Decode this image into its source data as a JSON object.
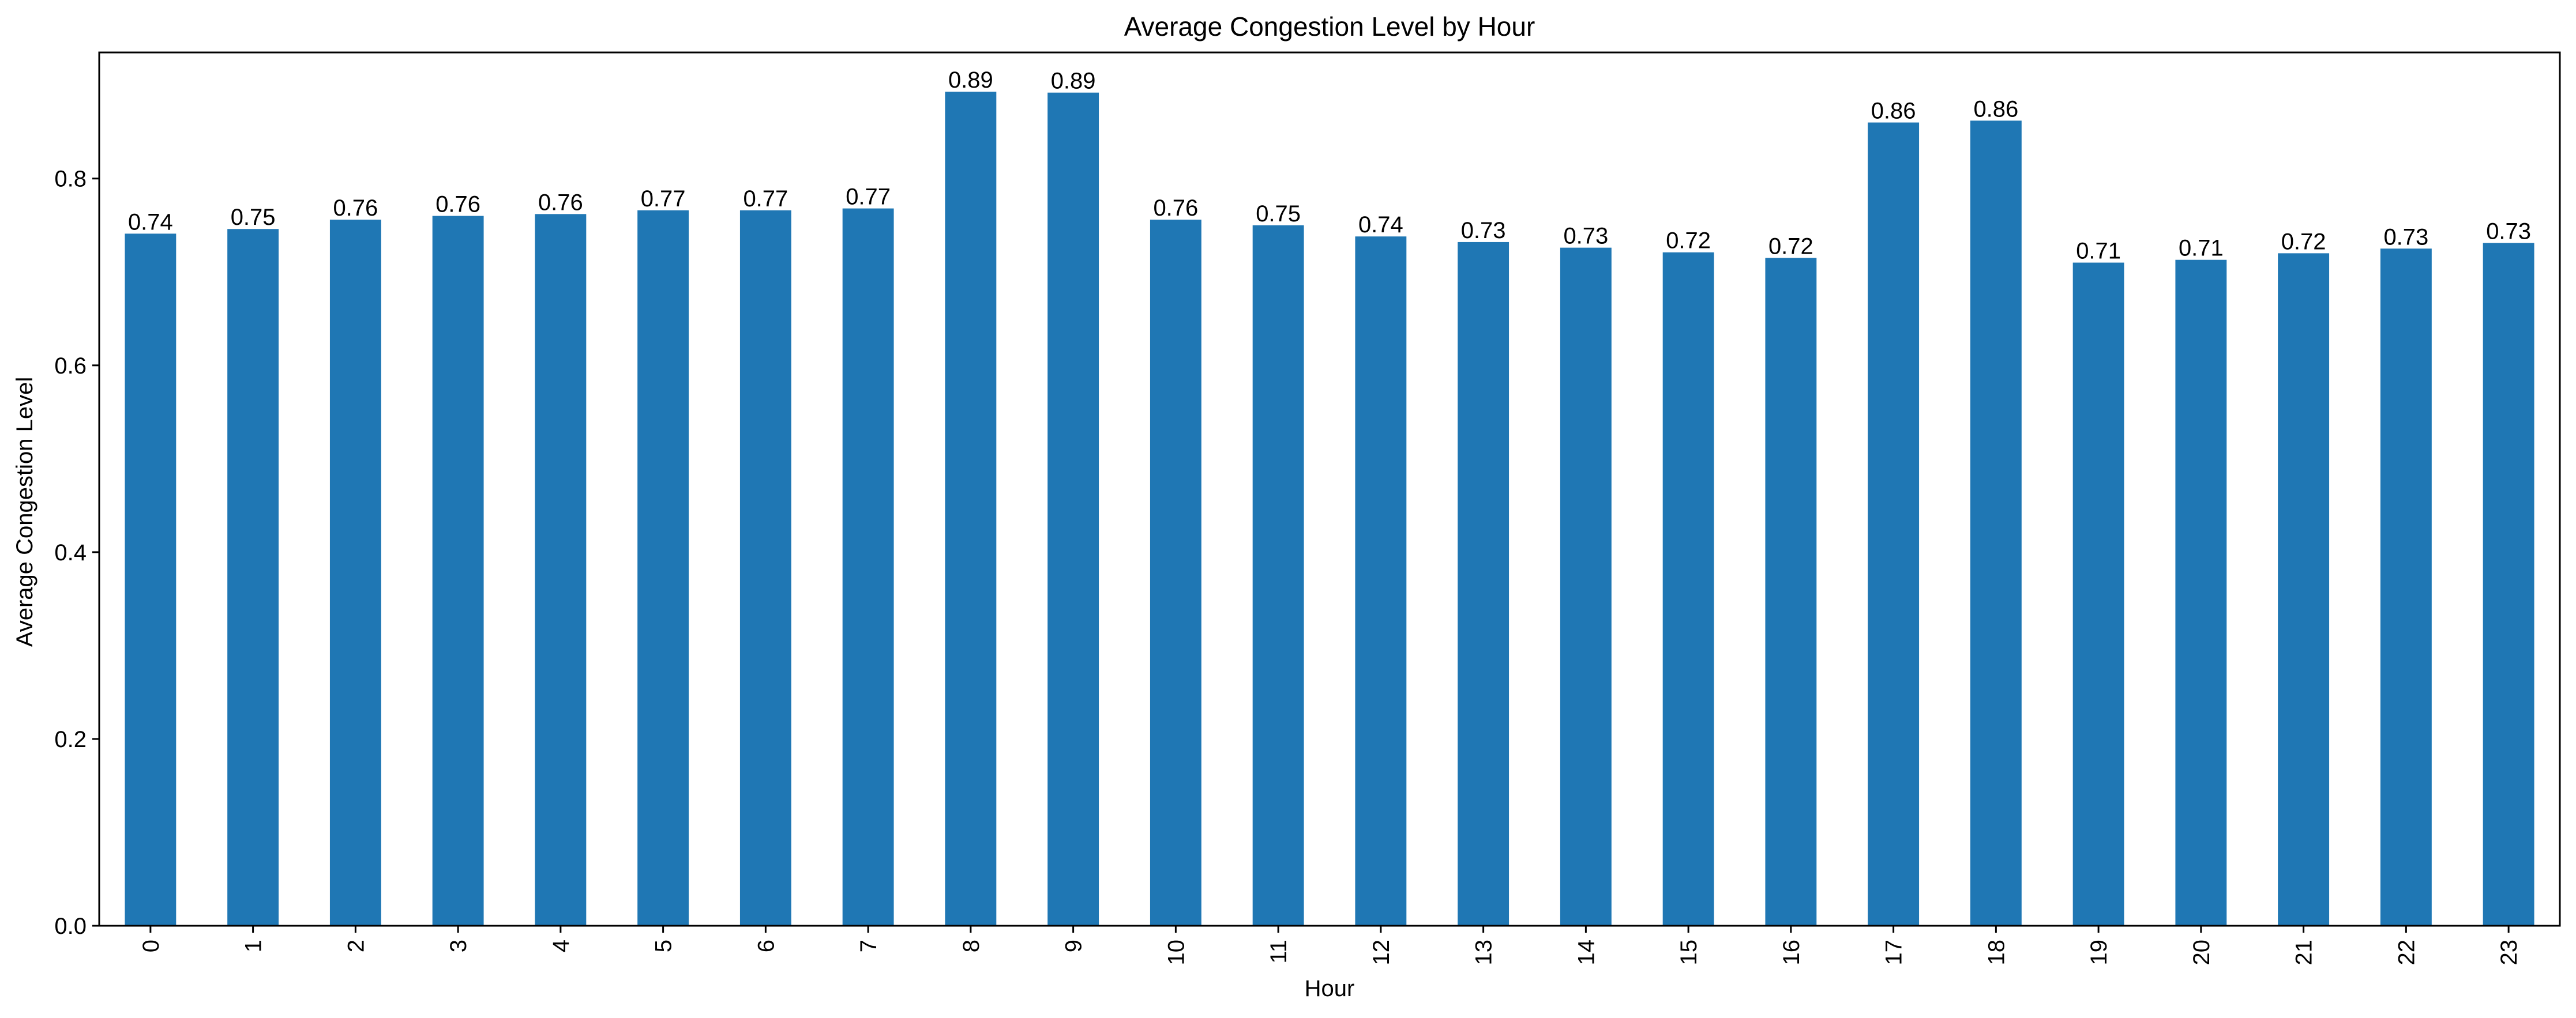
{
  "chart_data": {
    "type": "bar",
    "title": "Average Congestion Level by Hour",
    "xlabel": "Hour",
    "ylabel": "Average Congestion Level",
    "categories": [
      "0",
      "1",
      "2",
      "3",
      "4",
      "5",
      "6",
      "7",
      "8",
      "9",
      "10",
      "11",
      "12",
      "13",
      "14",
      "15",
      "16",
      "17",
      "18",
      "19",
      "20",
      "21",
      "22",
      "23"
    ],
    "values": [
      0.741,
      0.746,
      0.756,
      0.76,
      0.762,
      0.766,
      0.766,
      0.768,
      0.893,
      0.892,
      0.756,
      0.75,
      0.738,
      0.732,
      0.726,
      0.721,
      0.715,
      0.86,
      0.862,
      0.71,
      0.713,
      0.72,
      0.725,
      0.731
    ],
    "data_labels": [
      "0.74",
      "0.75",
      "0.76",
      "0.76",
      "0.76",
      "0.77",
      "0.77",
      "0.77",
      "0.89",
      "0.89",
      "0.76",
      "0.75",
      "0.74",
      "0.73",
      "0.73",
      "0.72",
      "0.72",
      "0.86",
      "0.86",
      "0.71",
      "0.71",
      "0.72",
      "0.73",
      "0.73"
    ],
    "ylim": [
      0,
      0.935
    ],
    "yticks": [
      0.0,
      0.2,
      0.4,
      0.6,
      0.8
    ],
    "ytick_labels": [
      "0.0",
      "0.2",
      "0.4",
      "0.6",
      "0.8"
    ],
    "bar_color": "#1f77b4",
    "grid": false,
    "legend": "none"
  }
}
